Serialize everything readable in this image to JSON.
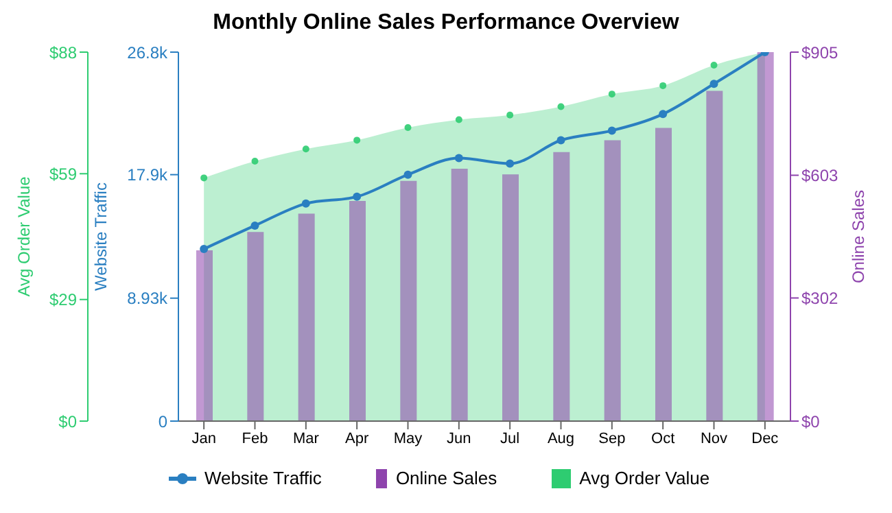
{
  "chart_data": {
    "type": "bar",
    "title": "Monthly Online Sales Performance Overview",
    "categories": [
      "Jan",
      "Feb",
      "Mar",
      "Apr",
      "May",
      "Jun",
      "Jul",
      "Aug",
      "Sep",
      "Oct",
      "Nov",
      "Dec"
    ],
    "series": [
      {
        "name": "Website Traffic",
        "type": "line",
        "color": "#2a7fc1",
        "axis": "y",
        "values": [
          12500,
          14200,
          15800,
          16300,
          17900,
          19100,
          18700,
          20400,
          21100,
          22300,
          24500,
          26800
        ]
      },
      {
        "name": "Online Sales",
        "color": "#8e44ad",
        "axis": "y2",
        "values": [
          419,
          464,
          509,
          540,
          589,
          619,
          605,
          660,
          689,
          719,
          810,
          905
        ]
      },
      {
        "name": "Avg Order Value",
        "type": "area",
        "color": "#2ecc71",
        "axis": "y3",
        "values": [
          58.0,
          62.0,
          64.9,
          67.0,
          70.0,
          71.9,
          73.0,
          75.0,
          78.0,
          80.0,
          84.9,
          88
        ]
      }
    ],
    "ylabel": "Website Traffic",
    "ylim": [
      0,
      26800
    ],
    "yticks": [
      0,
      {
        "value": 8930,
        "label": "8.93k"
      },
      {
        "value": 17900,
        "label": "17.9k"
      },
      {
        "value": 26800,
        "label": "26.8k"
      }
    ],
    "y2label": "Online Sales",
    "y2lim": [
      0,
      905
    ],
    "y2ticks": [
      {
        "value": 0,
        "label": "$0"
      },
      {
        "value": 302,
        "label": "$302"
      },
      {
        "value": 603,
        "label": "$603"
      },
      {
        "value": 905,
        "label": "$905"
      }
    ],
    "y3label": "Avg Order Value",
    "y3lim": [
      0,
      88
    ],
    "y3ticks": [
      {
        "value": 0,
        "label": "$0"
      },
      {
        "value": 29,
        "label": "$29"
      },
      {
        "value": 59,
        "label": "$59"
      },
      {
        "value": 88,
        "label": "$88"
      }
    ],
    "legend": "bottom",
    "marker": "circle",
    "grid": false
  }
}
